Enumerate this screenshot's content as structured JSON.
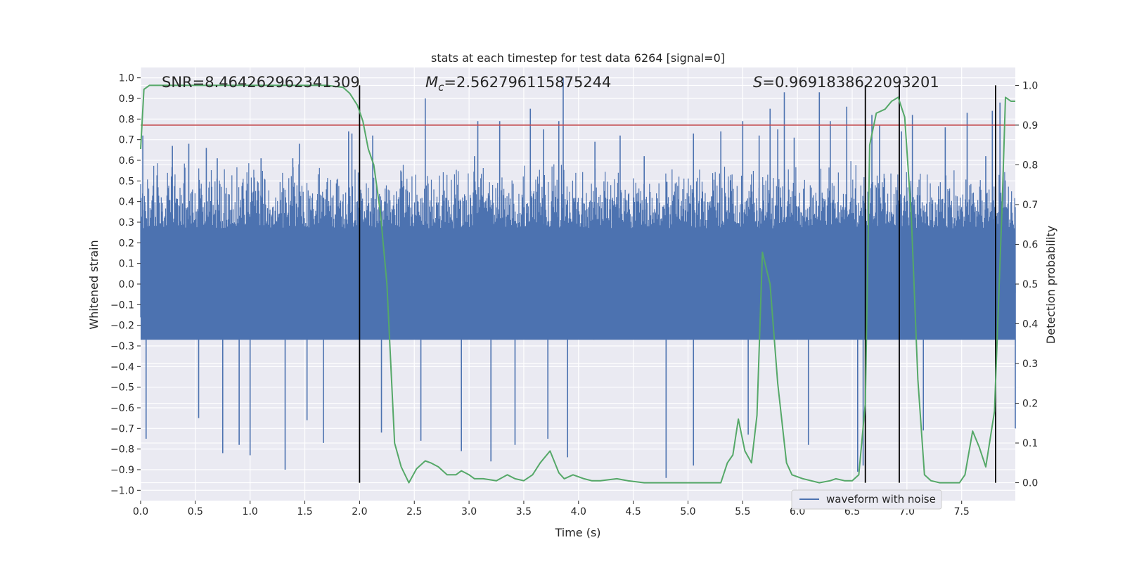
{
  "chart_data": {
    "type": "line",
    "title": "stats at each timestep for test data 6264 [signal=0]",
    "xlabel": "Time (s)",
    "ylabel": "Whitened strain",
    "ylabel_right": "Detection probability",
    "xlim": [
      0.0,
      7.99
    ],
    "ylim": [
      -1.05,
      1.05
    ],
    "ylim_right": [
      -0.045,
      1.045
    ],
    "x_ticks": [
      "0.0",
      "0.5",
      "1.0",
      "1.5",
      "2.0",
      "2.5",
      "3.0",
      "3.5",
      "4.0",
      "4.5",
      "5.0",
      "5.5",
      "6.0",
      "6.5",
      "7.0",
      "7.5"
    ],
    "y_ticks": [
      "1.0",
      "0.9",
      "0.8",
      "0.7",
      "0.6",
      "0.5",
      "0.4",
      "0.3",
      "0.2",
      "0.1",
      "0.0",
      "−0.1",
      "−0.2",
      "−0.3",
      "−0.4",
      "−0.5",
      "−0.6",
      "−0.7",
      "−0.8",
      "−0.9",
      "−1.0"
    ],
    "y_ticks_right": [
      "1.0",
      "0.9",
      "0.8",
      "0.7",
      "0.6",
      "0.5",
      "0.4",
      "0.3",
      "0.2",
      "0.1",
      "0.0"
    ],
    "grid": true,
    "legend_position": "bottom-right",
    "annotations": {
      "snr": "SNR=8.464262962341309",
      "mc_symbol": "M",
      "mc_sub": "c",
      "mc_value": "=2.562796115875244",
      "s_symbol": "S",
      "s_value": "=0.9691838622093201"
    },
    "threshold": {
      "value": 0.9,
      "axis": "right",
      "color": "#c44e52"
    },
    "vertical_lines": {
      "x": [
        2.0,
        6.62,
        6.93,
        7.81
      ],
      "ymin": 0.0,
      "ymax": 1.0,
      "axis": "right",
      "color": "#000000"
    },
    "series": [
      {
        "name": "waveform with noise",
        "axis": "left",
        "color": "#4c72b0",
        "style": "dense-noise",
        "description_stats": {
          "core_band": [
            -0.27,
            0.27
          ],
          "typical_peak_top": 0.6,
          "typical_peak_bottom": -0.6
        },
        "spikes": [
          [
            0.02,
            0.72
          ],
          [
            0.05,
            -0.75
          ],
          [
            0.29,
            0.67
          ],
          [
            0.44,
            0.68
          ],
          [
            0.53,
            -0.65
          ],
          [
            0.6,
            0.66
          ],
          [
            0.7,
            0.61
          ],
          [
            0.75,
            -0.82
          ],
          [
            0.9,
            -0.78
          ],
          [
            1.0,
            -0.83
          ],
          [
            1.1,
            0.61
          ],
          [
            1.32,
            -0.9
          ],
          [
            1.39,
            0.61
          ],
          [
            1.45,
            0.68
          ],
          [
            1.52,
            -0.66
          ],
          [
            1.67,
            -0.77
          ],
          [
            1.9,
            0.74
          ],
          [
            1.93,
            0.73
          ],
          [
            2.12,
            0.72
          ],
          [
            2.2,
            -0.72
          ],
          [
            2.6,
            0.9
          ],
          [
            2.56,
            -0.76
          ],
          [
            2.93,
            -0.81
          ],
          [
            3.05,
            0.62
          ],
          [
            3.08,
            0.79
          ],
          [
            3.2,
            -0.86
          ],
          [
            3.28,
            0.79
          ],
          [
            3.42,
            -0.78
          ],
          [
            3.56,
            0.85
          ],
          [
            3.68,
            0.75
          ],
          [
            3.72,
            -0.75
          ],
          [
            3.82,
            0.79
          ],
          [
            3.86,
            1.0
          ],
          [
            3.9,
            -0.84
          ],
          [
            4.15,
            0.69
          ],
          [
            4.38,
            0.72
          ],
          [
            4.6,
            0.62
          ],
          [
            4.8,
            -0.94
          ],
          [
            5.05,
            -0.88
          ],
          [
            5.05,
            0.73
          ],
          [
            5.3,
            0.74
          ],
          [
            5.5,
            0.79
          ],
          [
            5.55,
            -0.73
          ],
          [
            5.65,
            0.72
          ],
          [
            5.75,
            0.85
          ],
          [
            5.82,
            0.75
          ],
          [
            5.88,
            0.93
          ],
          [
            5.97,
            0.71
          ],
          [
            6.1,
            -0.78
          ],
          [
            6.2,
            0.93
          ],
          [
            6.3,
            0.79
          ],
          [
            6.45,
            0.86
          ],
          [
            6.55,
            -0.91
          ],
          [
            6.6,
            -0.88
          ],
          [
            6.68,
            0.82
          ],
          [
            6.75,
            0.77
          ],
          [
            6.95,
            0.74
          ],
          [
            7.05,
            0.82
          ],
          [
            7.15,
            -0.71
          ],
          [
            7.35,
            0.76
          ],
          [
            7.55,
            0.83
          ],
          [
            7.72,
            0.62
          ],
          [
            7.78,
            0.84
          ],
          [
            7.85,
            0.88
          ],
          [
            7.99,
            -0.7
          ]
        ]
      },
      {
        "name": "",
        "axis": "right",
        "color": "#55a868",
        "style": "line",
        "x": [
          0.0,
          0.03,
          0.08,
          0.15,
          0.3,
          1.0,
          1.7,
          1.85,
          1.91,
          1.98,
          2.03,
          2.08,
          2.13,
          2.19,
          2.25,
          2.32,
          2.38,
          2.45,
          2.52,
          2.6,
          2.65,
          2.72,
          2.8,
          2.88,
          2.93,
          3.0,
          3.05,
          3.13,
          3.25,
          3.35,
          3.42,
          3.5,
          3.58,
          3.65,
          3.74,
          3.82,
          3.87,
          3.95,
          4.05,
          4.12,
          4.2,
          4.35,
          4.45,
          4.6,
          4.8,
          5.0,
          5.2,
          5.3,
          5.36,
          5.41,
          5.46,
          5.52,
          5.58,
          5.63,
          5.68,
          5.75,
          5.82,
          5.9,
          5.95,
          6.05,
          6.2,
          6.3,
          6.35,
          6.43,
          6.5,
          6.56,
          6.62,
          6.66,
          6.72,
          6.8,
          6.86,
          6.92,
          6.98,
          7.04,
          7.1,
          7.16,
          7.22,
          7.3,
          7.4,
          7.48,
          7.53,
          7.6,
          7.66,
          7.72,
          7.8,
          7.87,
          7.9,
          7.95,
          7.99
        ],
        "y": [
          0.84,
          0.99,
          1.0,
          1.0,
          1.0,
          1.0,
          1.0,
          0.995,
          0.98,
          0.95,
          0.91,
          0.84,
          0.8,
          0.68,
          0.5,
          0.1,
          0.04,
          0.0,
          0.035,
          0.055,
          0.05,
          0.04,
          0.02,
          0.02,
          0.03,
          0.02,
          0.01,
          0.01,
          0.005,
          0.02,
          0.01,
          0.005,
          0.02,
          0.05,
          0.08,
          0.025,
          0.01,
          0.02,
          0.01,
          0.005,
          0.005,
          0.01,
          0.005,
          0.0,
          0.0,
          0.0,
          0.0,
          0.0,
          0.05,
          0.07,
          0.16,
          0.08,
          0.05,
          0.17,
          0.58,
          0.5,
          0.25,
          0.05,
          0.02,
          0.01,
          0.0,
          0.005,
          0.01,
          0.005,
          0.005,
          0.02,
          0.2,
          0.85,
          0.93,
          0.94,
          0.96,
          0.97,
          0.92,
          0.67,
          0.26,
          0.02,
          0.005,
          0.0,
          0.0,
          0.0,
          0.02,
          0.13,
          0.09,
          0.04,
          0.18,
          0.7,
          0.97,
          0.96,
          0.96
        ]
      }
    ]
  }
}
